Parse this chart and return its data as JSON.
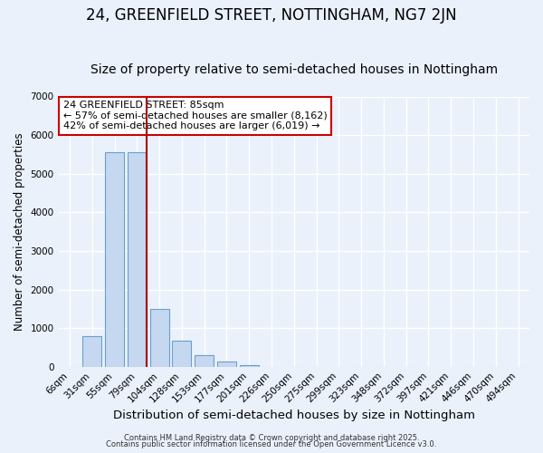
{
  "title": "24, GREENFIELD STREET, NOTTINGHAM, NG7 2JN",
  "subtitle": "Size of property relative to semi-detached houses in Nottingham",
  "xlabel": "Distribution of semi-detached houses by size in Nottingham",
  "ylabel": "Number of semi-detached properties",
  "bar_labels": [
    "6sqm",
    "31sqm",
    "55sqm",
    "79sqm",
    "104sqm",
    "128sqm",
    "153sqm",
    "177sqm",
    "201sqm",
    "226sqm",
    "250sqm",
    "275sqm",
    "299sqm",
    "323sqm",
    "348sqm",
    "372sqm",
    "397sqm",
    "421sqm",
    "446sqm",
    "470sqm",
    "494sqm"
  ],
  "bar_values": [
    0,
    800,
    5550,
    5550,
    1500,
    670,
    290,
    140,
    50,
    0,
    0,
    0,
    0,
    0,
    0,
    0,
    0,
    0,
    0,
    0,
    0
  ],
  "bar_color": "#c5d8f0",
  "bar_edge_color": "#6aa0cc",
  "vline_color": "#aa0000",
  "annotation_line1": "24 GREENFIELD STREET: 85sqm",
  "annotation_line2": "← 57% of semi-detached houses are smaller (8,162)",
  "annotation_line3": "42% of semi-detached houses are larger (6,019) →",
  "ylim": [
    0,
    7000
  ],
  "yticks": [
    0,
    1000,
    2000,
    3000,
    4000,
    5000,
    6000,
    7000
  ],
  "bg_color": "#eaf1fb",
  "plot_bg_color": "#eaf1fb",
  "grid_color": "#ffffff",
  "footer1": "Contains HM Land Registry data © Crown copyright and database right 2025.",
  "footer2": "Contains public sector information licensed under the Open Government Licence v3.0.",
  "title_fontsize": 12,
  "subtitle_fontsize": 10,
  "xlabel_fontsize": 9.5,
  "ylabel_fontsize": 8.5,
  "tick_fontsize": 7.5,
  "annotation_fontsize": 8,
  "footer_fontsize": 6
}
